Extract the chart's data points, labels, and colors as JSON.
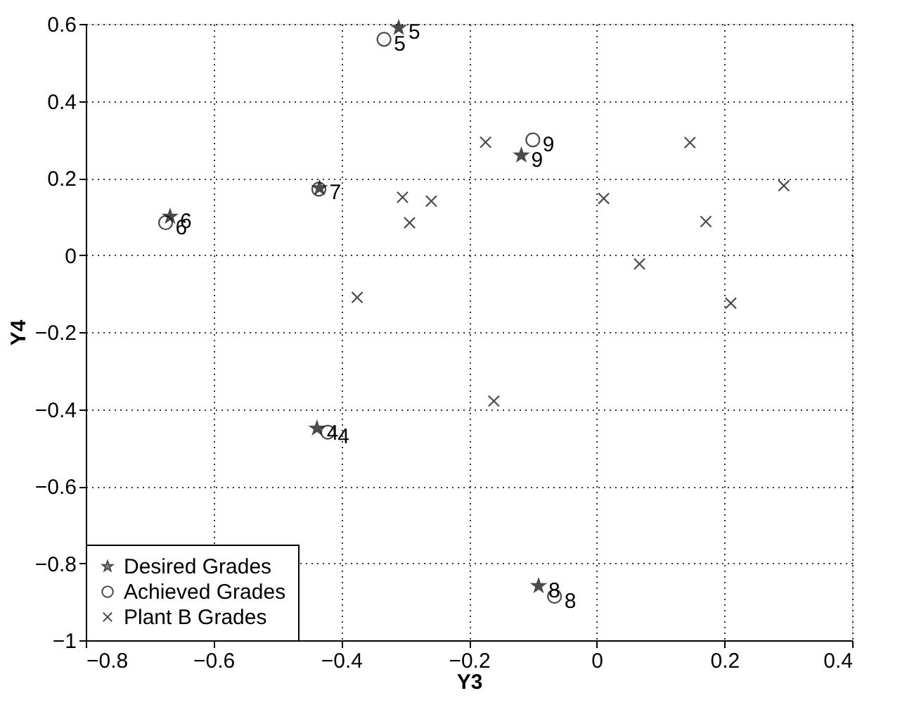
{
  "chart_data": {
    "type": "scatter",
    "xlabel": "Y3",
    "ylabel": "Y4",
    "xlim": [
      -0.8,
      0.4
    ],
    "xticks": [
      -0.8,
      -0.6,
      -0.4,
      -0.2,
      0,
      0.2,
      0.4
    ],
    "ylim": [
      -1,
      0.6
    ],
    "yticks": [
      -1,
      -0.8,
      -0.6,
      -0.4,
      -0.2,
      0,
      0.2,
      0.4,
      0.6
    ],
    "grid": true,
    "legend": "bottom left",
    "series": [
      {
        "name": "Desired Grades",
        "color": "#000000",
        "marker": "star",
        "x": [
          -0.438,
          -0.31,
          -0.668,
          -0.434,
          -0.091,
          -0.118
        ],
        "values": [
          -0.45,
          0.59,
          0.1,
          0.174,
          -0.859,
          0.259
        ]
      },
      {
        "name": "Achieved Grades",
        "color": "#000000",
        "marker": "circle",
        "x": [
          -0.421,
          -0.333,
          -0.675,
          -0.435,
          -0.066,
          -0.1
        ],
        "values": [
          -0.46,
          0.56,
          0.084,
          0.171,
          -0.886,
          0.299
        ]
      },
      {
        "name": "Plant B Grades",
        "color": "#000000",
        "marker": "cross",
        "x": [
          -0.174,
          -0.304,
          -0.293,
          -0.259,
          -0.375,
          0.011,
          0.067,
          0.146,
          0.171,
          0.21,
          0.293,
          -0.161
        ],
        "values": [
          0.293,
          0.15,
          0.084,
          0.14,
          -0.11,
          0.147,
          -0.023,
          0.292,
          0.087,
          -0.125,
          0.18,
          -0.379
        ]
      }
    ],
    "annotations": [
      {
        "text": "4",
        "x": -0.438,
        "y": -0.45
      },
      {
        "text": "5",
        "x": -0.31,
        "y": 0.59
      },
      {
        "text": "6",
        "x": -0.668,
        "y": 0.1
      },
      {
        "text": "7",
        "x": -0.434,
        "y": 0.174
      },
      {
        "text": "8",
        "x": -0.091,
        "y": -0.859
      },
      {
        "text": "9",
        "x": -0.118,
        "y": 0.259
      },
      {
        "text": "4",
        "x": -0.421,
        "y": -0.46
      },
      {
        "text": "5",
        "x": -0.333,
        "y": 0.56
      },
      {
        "text": "6",
        "x": -0.675,
        "y": 0.084
      },
      {
        "text": "8",
        "x": -0.066,
        "y": -0.886
      },
      {
        "text": "9",
        "x": -0.1,
        "y": 0.299
      }
    ]
  }
}
